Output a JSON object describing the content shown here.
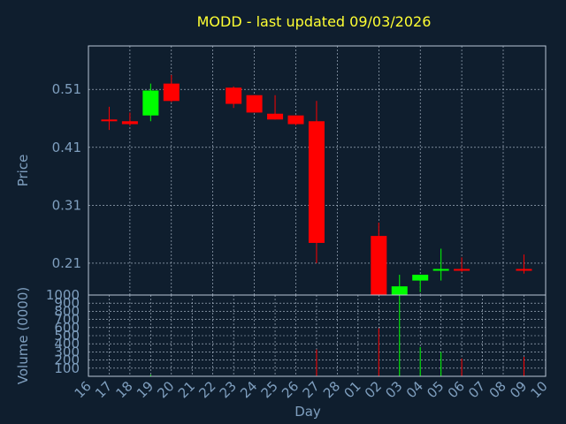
{
  "chart_data": {
    "type": "candlestick",
    "title": "MODD - last updated 09/03/2026",
    "xlabel": "Day",
    "price_panel": {
      "ylabel": "Price",
      "ylim": [
        0.155,
        0.585
      ],
      "yticks": [
        0.21,
        0.31,
        0.41,
        0.51
      ],
      "ytick_labels": [
        "0.21",
        "0.31",
        "0.41",
        "0.51"
      ],
      "grid": true
    },
    "volume_panel": {
      "ylabel": "Volume (0000)",
      "ylim": [
        0,
        1000
      ],
      "yticks": [
        100,
        200,
        300,
        400,
        500,
        600,
        700,
        800,
        900,
        1000
      ],
      "ytick_labels": [
        "100",
        "200",
        "300",
        "400",
        "500",
        "600",
        "700",
        "800",
        "900",
        "1000"
      ],
      "grid": true
    },
    "x_ticks": [
      "16",
      "17",
      "18",
      "19",
      "20",
      "21",
      "22",
      "23",
      "24",
      "25",
      "26",
      "27",
      "28",
      "01",
      "02",
      "03",
      "04",
      "05",
      "06",
      "07",
      "08",
      "09",
      "10"
    ],
    "up_color": "#00ff00",
    "down_color": "#ff0000",
    "candles": [
      {
        "day": "17",
        "open": 0.458,
        "high": 0.48,
        "low": 0.44,
        "close": 0.456,
        "volume": 0
      },
      {
        "day": "18",
        "open": 0.455,
        "high": 0.47,
        "low": 0.447,
        "close": 0.45,
        "volume": 0
      },
      {
        "day": "19",
        "open": 0.465,
        "high": 0.52,
        "low": 0.455,
        "close": 0.508,
        "volume": 20
      },
      {
        "day": "20",
        "open": 0.52,
        "high": 0.535,
        "low": 0.488,
        "close": 0.49,
        "volume": 0
      },
      {
        "day": "23",
        "open": 0.513,
        "high": 0.515,
        "low": 0.478,
        "close": 0.485,
        "volume": 0
      },
      {
        "day": "24",
        "open": 0.5,
        "high": 0.5,
        "low": 0.47,
        "close": 0.47,
        "volume": 0
      },
      {
        "day": "25",
        "open": 0.468,
        "high": 0.5,
        "low": 0.458,
        "close": 0.458,
        "volume": 0
      },
      {
        "day": "26",
        "open": 0.465,
        "high": 0.465,
        "low": 0.448,
        "close": 0.45,
        "volume": 0
      },
      {
        "day": "27",
        "open": 0.455,
        "high": 0.49,
        "low": 0.21,
        "close": 0.245,
        "volume": 330
      },
      {
        "day": "02",
        "open": 0.257,
        "high": 0.28,
        "low": 0.155,
        "close": 0.155,
        "volume": 590
      },
      {
        "day": "03",
        "open": 0.155,
        "high": 0.19,
        "low": 0.155,
        "close": 0.17,
        "volume": 990
      },
      {
        "day": "04",
        "open": 0.18,
        "high": 0.19,
        "low": 0.16,
        "close": 0.19,
        "volume": 360
      },
      {
        "day": "05",
        "open": 0.197,
        "high": 0.235,
        "low": 0.18,
        "close": 0.2,
        "volume": 300
      },
      {
        "day": "06",
        "open": 0.2,
        "high": 0.22,
        "low": 0.195,
        "close": 0.197,
        "volume": 220
      },
      {
        "day": "09",
        "open": 0.2,
        "high": 0.225,
        "low": 0.192,
        "close": 0.197,
        "volume": 240
      }
    ]
  }
}
